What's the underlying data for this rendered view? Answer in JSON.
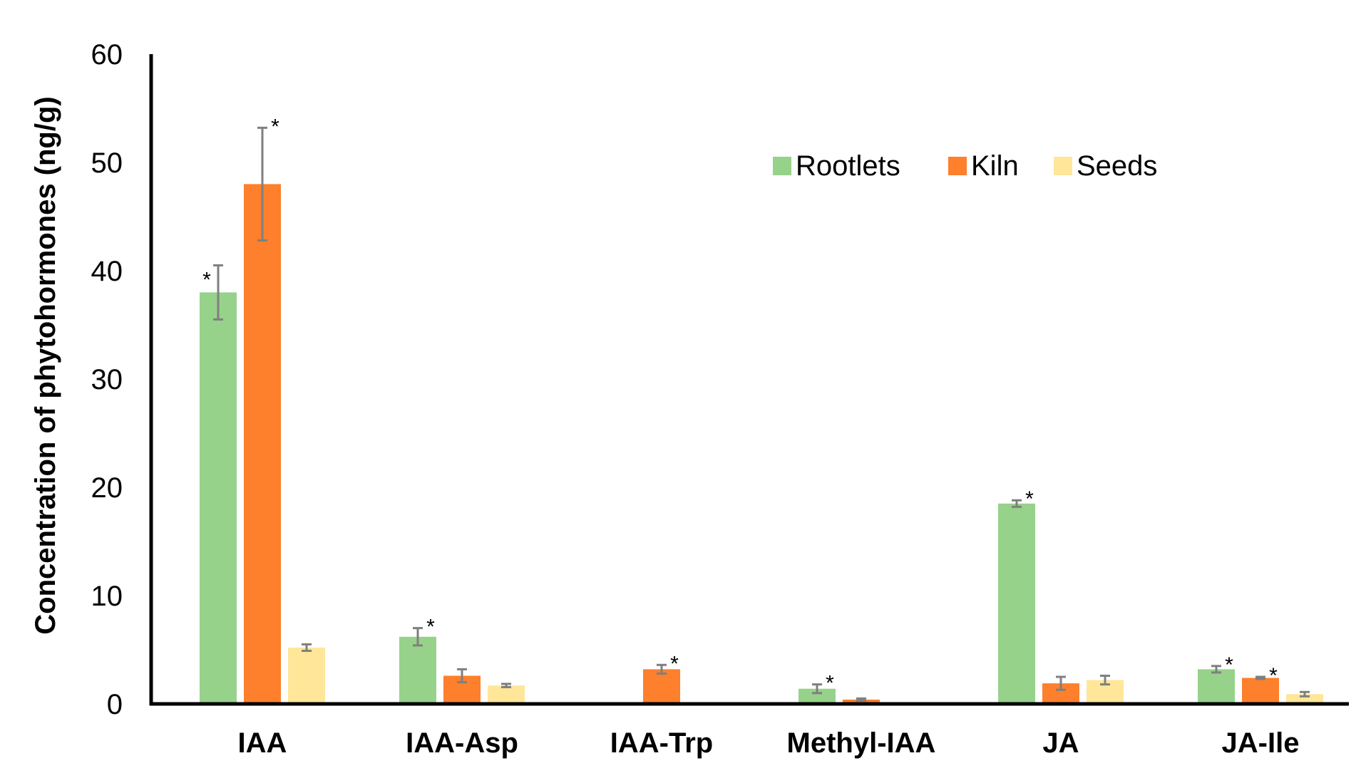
{
  "chart_data": {
    "type": "bar",
    "ylabel": "Concentration of phytohormones (ng/g)",
    "xlabel": "",
    "ylim": [
      0,
      60
    ],
    "yticks": [
      0,
      10,
      20,
      30,
      40,
      50,
      60
    ],
    "grid": false,
    "legend": {
      "placement": "top-right"
    },
    "categories": [
      "IAA",
      "IAA-Asp",
      "IAA-Trp",
      "Methyl-IAA",
      "JA",
      "JA-Ile"
    ],
    "series": [
      {
        "name": "Rootlets",
        "color": "#97D28B",
        "values": [
          38,
          6.2,
          0,
          1.4,
          18.5,
          3.2
        ],
        "errors": [
          2.5,
          0.8,
          0,
          0.4,
          0.3,
          0.3
        ],
        "significant": [
          true,
          true,
          false,
          true,
          true,
          true
        ]
      },
      {
        "name": "Kiln",
        "color": "#FE7F2C",
        "values": [
          48,
          2.6,
          3.2,
          0.4,
          1.9,
          2.4
        ],
        "errors": [
          5.2,
          0.6,
          0.4,
          0.1,
          0.6,
          0.1
        ],
        "significant": [
          true,
          false,
          true,
          false,
          false,
          true
        ]
      },
      {
        "name": "Seeds",
        "color": "#FFE699",
        "values": [
          5.2,
          1.7,
          0,
          0,
          2.2,
          0.9
        ],
        "errors": [
          0.3,
          0.15,
          0,
          0,
          0.4,
          0.2
        ],
        "significant": [
          false,
          false,
          false,
          false,
          false,
          false
        ]
      }
    ],
    "significance_marker": "*",
    "error_bar_color": "#7F7F7F"
  }
}
